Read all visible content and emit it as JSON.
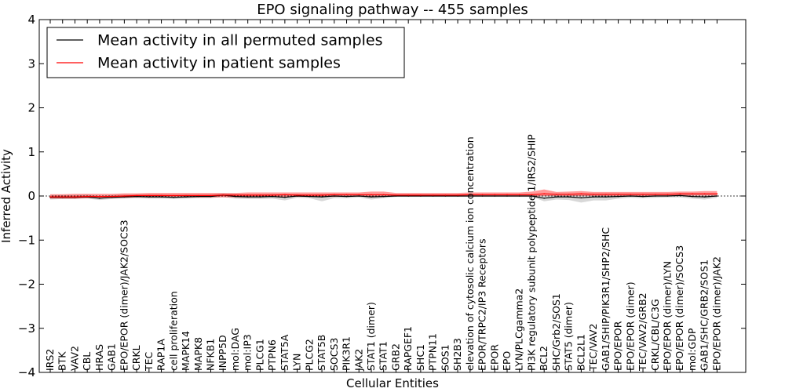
{
  "chart_data": {
    "type": "line",
    "title": "EPO signaling pathway -- 455 samples",
    "xlabel": "Cellular Entities",
    "ylabel": "Inferred Activity",
    "ylim": [
      -4,
      4
    ],
    "yticks": [
      -4,
      -3,
      -2,
      -1,
      0,
      1,
      2,
      3,
      4
    ],
    "ytick_labels": [
      "−4",
      "−3",
      "−2",
      "−1",
      "0",
      "1",
      "2",
      "3",
      "4"
    ],
    "legend_position": "top-left",
    "categories": [
      "IRS2",
      "BTK",
      "VAV2",
      "CBL",
      "HRAS",
      "GAB1",
      "EPO/EPOR (dimer)/JAK2/SOCS3",
      "CRKL",
      "TEC",
      "RAP1A",
      "cell proliferation",
      "MAPK14",
      "MAPK8",
      "NFKB1",
      "INPP5D",
      "mol:DAG",
      "mol:IP3",
      "PLCG1",
      "PTPN6",
      "STAT5A",
      "LYN",
      "PLCG2",
      "STAT5B",
      "SOCS3",
      "PIK3R1",
      "JAK2",
      "STAT1 (dimer)",
      "STAT1",
      "GRB2",
      "RAPGEF1",
      "SHC1",
      "PTPN11",
      "SOS1",
      "SH2B3",
      "elevation of cytosolic calcium ion concentration",
      "EPOR/TRPC2/IP3 Receptors",
      "EPOR",
      "EPO",
      "LYN/PLCgamma2",
      "PI3K regulatory subunit polypeptide 1/IRS2/SHIP",
      "BCL2",
      "SHC/Grb2/SOS1",
      "STAT5 (dimer)",
      "BCL2L1",
      "TEC/VAV2",
      "GAB1/SHIP/PIK3R1/SHP2/SHC",
      "EPO/EPOR",
      "EPO/EPOR (dimer)",
      "TEC/VAV2/GRB2",
      "CRKL/CBL/C3G",
      "EPO/EPOR (dimer)/LYN",
      "EPO/EPOR (dimer)/SOCS3",
      "mol:GDP",
      "GAB1/SHC/GRB2/SOS1",
      "EPO/EPOR (dimer)/JAK2"
    ],
    "series": [
      {
        "name": "Mean activity in all permuted samples",
        "color": "#000000",
        "values": [
          -0.03,
          -0.03,
          -0.03,
          -0.02,
          -0.05,
          -0.03,
          -0.02,
          -0.01,
          -0.02,
          -0.02,
          -0.03,
          -0.02,
          -0.01,
          -0.01,
          0.02,
          -0.01,
          -0.02,
          -0.02,
          -0.01,
          -0.03,
          0.0,
          -0.01,
          -0.02,
          0.0,
          -0.01,
          0.0,
          -0.02,
          -0.01,
          0.0,
          0.0,
          0.0,
          0.0,
          0.0,
          0.0,
          0.0,
          0.0,
          0.0,
          0.0,
          0.0,
          0.0,
          -0.05,
          -0.02,
          -0.02,
          -0.04,
          -0.02,
          -0.02,
          -0.01,
          0.0,
          -0.01,
          0.0,
          0.0,
          0.01,
          -0.01,
          -0.02,
          0.0
        ],
        "band_low": [
          -0.08,
          -0.07,
          -0.07,
          -0.06,
          -0.09,
          -0.07,
          -0.06,
          -0.05,
          -0.06,
          -0.06,
          -0.07,
          -0.06,
          -0.05,
          -0.05,
          -0.02,
          -0.06,
          -0.07,
          -0.07,
          -0.06,
          -0.1,
          -0.04,
          -0.05,
          -0.12,
          -0.05,
          -0.05,
          -0.03,
          -0.08,
          -0.05,
          -0.02,
          -0.02,
          -0.02,
          -0.02,
          -0.02,
          -0.02,
          -0.02,
          -0.02,
          -0.02,
          -0.02,
          -0.02,
          -0.02,
          -0.12,
          -0.08,
          -0.09,
          -0.15,
          -0.1,
          -0.1,
          -0.06,
          -0.04,
          -0.05,
          -0.04,
          -0.03,
          -0.03,
          -0.06,
          -0.08,
          -0.04
        ],
        "band_high": [
          0.02,
          0.02,
          0.02,
          0.03,
          0.0,
          0.02,
          0.03,
          0.03,
          0.03,
          0.03,
          0.02,
          0.03,
          0.03,
          0.03,
          0.06,
          0.04,
          0.03,
          0.03,
          0.04,
          0.03,
          0.04,
          0.03,
          0.04,
          0.04,
          0.03,
          0.03,
          0.03,
          0.03,
          0.02,
          0.02,
          0.02,
          0.02,
          0.02,
          0.02,
          0.02,
          0.02,
          0.02,
          0.02,
          0.02,
          0.02,
          0.02,
          0.03,
          0.03,
          0.03,
          0.04,
          0.04,
          0.04,
          0.04,
          0.04,
          0.04,
          0.04,
          0.05,
          0.04,
          0.04,
          0.04
        ]
      },
      {
        "name": "Mean activity in patient samples",
        "color": "#ff0000",
        "values": [
          -0.02,
          -0.02,
          -0.02,
          -0.01,
          -0.01,
          -0.01,
          0.0,
          0.01,
          0.01,
          0.01,
          0.01,
          0.01,
          0.01,
          0.01,
          0.02,
          0.02,
          0.02,
          0.02,
          0.02,
          0.03,
          0.02,
          0.02,
          0.02,
          0.03,
          0.03,
          0.03,
          0.03,
          0.03,
          0.02,
          0.02,
          0.02,
          0.02,
          0.02,
          0.02,
          0.03,
          0.03,
          0.03,
          0.03,
          0.03,
          0.03,
          0.05,
          0.04,
          0.04,
          0.05,
          0.04,
          0.04,
          0.04,
          0.04,
          0.04,
          0.04,
          0.04,
          0.05,
          0.05,
          0.05,
          0.05
        ],
        "band_low": [
          -0.06,
          -0.06,
          -0.06,
          -0.05,
          -0.05,
          -0.05,
          -0.04,
          -0.03,
          -0.03,
          -0.03,
          -0.03,
          -0.03,
          -0.03,
          -0.03,
          -0.03,
          -0.03,
          -0.03,
          -0.02,
          -0.02,
          -0.02,
          -0.02,
          -0.02,
          -0.02,
          -0.02,
          -0.01,
          -0.01,
          -0.02,
          -0.02,
          -0.01,
          -0.01,
          -0.01,
          -0.01,
          -0.01,
          -0.01,
          -0.01,
          -0.01,
          -0.01,
          -0.01,
          -0.01,
          -0.01,
          0.0,
          0.0,
          0.0,
          0.0,
          0.0,
          0.0,
          0.0,
          0.0,
          0.0,
          0.0,
          0.0,
          0.0,
          0.01,
          0.01,
          0.01
        ],
        "band_high": [
          0.04,
          0.04,
          0.05,
          0.05,
          0.05,
          0.05,
          0.06,
          0.06,
          0.07,
          0.07,
          0.07,
          0.07,
          0.07,
          0.07,
          0.07,
          0.07,
          0.08,
          0.08,
          0.08,
          0.08,
          0.08,
          0.08,
          0.08,
          0.08,
          0.08,
          0.08,
          0.1,
          0.1,
          0.07,
          0.07,
          0.07,
          0.07,
          0.07,
          0.07,
          0.08,
          0.08,
          0.08,
          0.08,
          0.08,
          0.1,
          0.15,
          0.09,
          0.1,
          0.11,
          0.09,
          0.09,
          0.09,
          0.09,
          0.09,
          0.09,
          0.09,
          0.1,
          0.1,
          0.11,
          0.11
        ]
      }
    ]
  }
}
